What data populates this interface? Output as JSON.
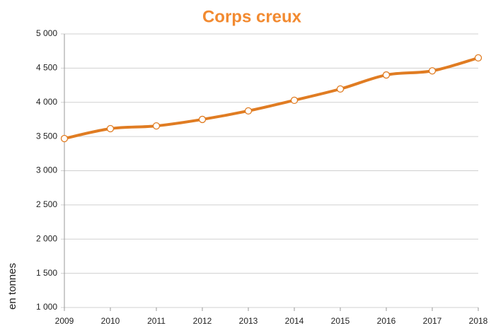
{
  "chart_data": {
    "type": "line",
    "title": "Corps creux",
    "ylabel": "en tonnes",
    "x": [
      2009,
      2010,
      2011,
      2012,
      2013,
      2014,
      2015,
      2016,
      2017,
      2018
    ],
    "xlim": [
      2009,
      2018
    ],
    "xticks": [
      2009,
      2010,
      2011,
      2012,
      2013,
      2014,
      2015,
      2016,
      2017,
      2018
    ],
    "series": [
      {
        "name": "Corps creux",
        "color": "#e07c22",
        "values": [
          3470,
          3615,
          3655,
          3750,
          3875,
          4030,
          4195,
          4400,
          4460,
          4650
        ]
      }
    ],
    "ylim": [
      1000,
      5000
    ],
    "yticks": [
      {
        "value": 1000,
        "label": "1 000"
      },
      {
        "value": 1500,
        "label": "1 500"
      },
      {
        "value": 2000,
        "label": "2 000"
      },
      {
        "value": 2500,
        "label": "2 500"
      },
      {
        "value": 3000,
        "label": "3 000"
      },
      {
        "value": 3500,
        "label": "3 500"
      },
      {
        "value": 4000,
        "label": "4 000"
      },
      {
        "value": 4500,
        "label": "4 500"
      },
      {
        "value": 5000,
        "label": "5 000"
      }
    ],
    "grid": true
  }
}
